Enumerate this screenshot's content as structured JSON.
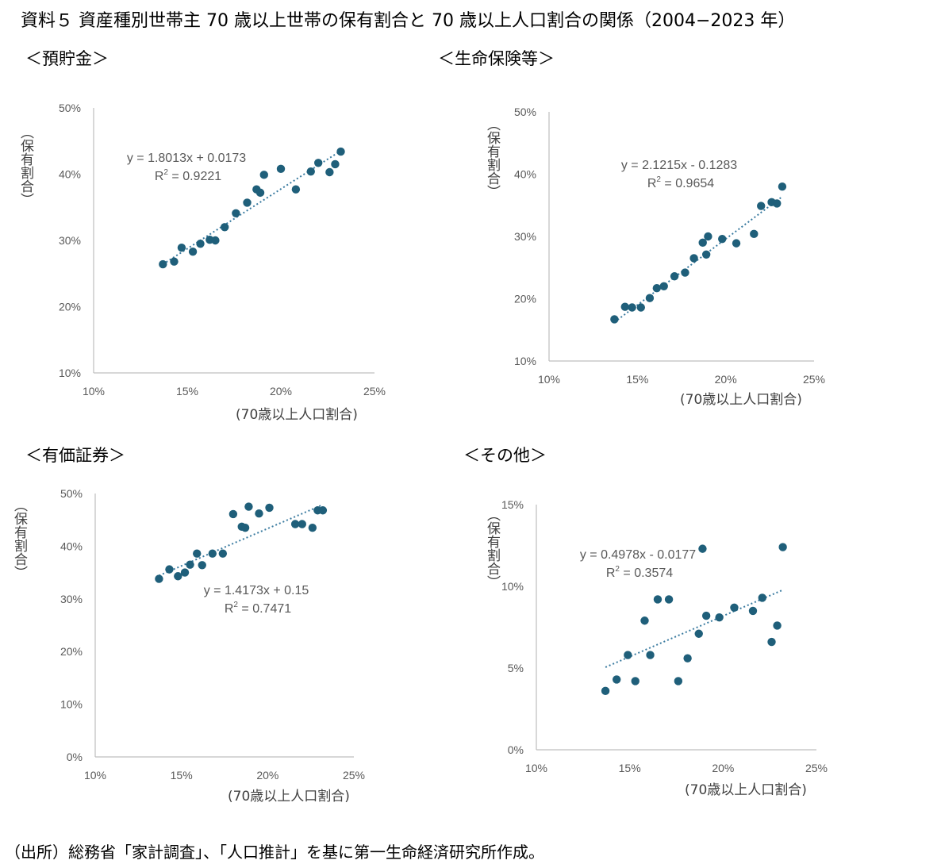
{
  "title": "資料５ 資産種別世帯主 70 歳以上世帯の保有割合と 70 歳以上人口割合の関係（2004−2023 年）",
  "source": "（出所）総務省「家計調査」、「人口推計」を基に第一生命経済研究所作成。",
  "colors": {
    "point": "#1f5f7a",
    "trend": "#3a7ba0",
    "axis": "#bfbfbf"
  },
  "chart_data": [
    {
      "type": "scatter",
      "panel_title": "＜預貯金＞",
      "ylabel": "（保有割合）",
      "xlabel": "(70歳以上人口割合)",
      "xlim": [
        0.1,
        0.25
      ],
      "ylim": [
        0.1,
        0.5
      ],
      "xticks": [
        "10%",
        "15%",
        "20%",
        "25%"
      ],
      "yticks": [
        "10%",
        "20%",
        "30%",
        "40%",
        "50%"
      ],
      "trendline": {
        "slope": 1.8013,
        "intercept": 0.0173,
        "equation": "y = 1.8013x + 0.0173",
        "r2_label": "R",
        "r2_value": " = 0.9221"
      },
      "x": [
        0.137,
        0.143,
        0.147,
        0.153,
        0.157,
        0.162,
        0.165,
        0.17,
        0.176,
        0.182,
        0.187,
        0.189,
        0.191,
        0.2,
        0.208,
        0.216,
        0.22,
        0.226,
        0.229,
        0.232
      ],
      "y": [
        0.264,
        0.268,
        0.289,
        0.283,
        0.295,
        0.301,
        0.3,
        0.32,
        0.341,
        0.357,
        0.377,
        0.372,
        0.399,
        0.408,
        0.377,
        0.404,
        0.417,
        0.403,
        0.415,
        0.434
      ]
    },
    {
      "type": "scatter",
      "panel_title": "＜生命保険等＞",
      "ylabel": "（保有割合）",
      "xlabel": "(70歳以上人口割合)",
      "xlim": [
        0.1,
        0.25
      ],
      "ylim": [
        0.1,
        0.5
      ],
      "xticks": [
        "10%",
        "15%",
        "20%",
        "25%"
      ],
      "yticks": [
        "10%",
        "20%",
        "30%",
        "40%",
        "50%"
      ],
      "trendline": {
        "slope": 2.1215,
        "intercept": -0.1283,
        "equation": "y = 2.1215x - 0.1283",
        "r2_label": "R",
        "r2_value": " = 0.9654"
      },
      "x": [
        0.137,
        0.143,
        0.147,
        0.152,
        0.157,
        0.161,
        0.165,
        0.171,
        0.177,
        0.182,
        0.187,
        0.189,
        0.19,
        0.198,
        0.206,
        0.216,
        0.22,
        0.226,
        0.229,
        0.232
      ],
      "y": [
        0.167,
        0.187,
        0.186,
        0.186,
        0.201,
        0.217,
        0.22,
        0.236,
        0.242,
        0.265,
        0.29,
        0.271,
        0.3,
        0.296,
        0.289,
        0.304,
        0.349,
        0.355,
        0.353,
        0.38
      ]
    },
    {
      "type": "scatter",
      "panel_title": "＜有価証券＞",
      "ylabel": "（保有割合）",
      "xlabel": "(70歳以上人口割合)",
      "xlim": [
        0.1,
        0.25
      ],
      "ylim": [
        0.0,
        0.5
      ],
      "xticks": [
        "10%",
        "15%",
        "20%",
        "25%"
      ],
      "yticks": [
        "0%",
        "10%",
        "20%",
        "30%",
        "40%",
        "50%"
      ],
      "trendline": {
        "slope": 1.4173,
        "intercept": 0.15,
        "equation": "y = 1.4173x + 0.15",
        "r2_label": "R",
        "r2_value": " = 0.7471"
      },
      "x": [
        0.137,
        0.143,
        0.148,
        0.152,
        0.155,
        0.159,
        0.162,
        0.168,
        0.174,
        0.18,
        0.185,
        0.187,
        0.189,
        0.195,
        0.201,
        0.216,
        0.22,
        0.226,
        0.229,
        0.232
      ],
      "y": [
        0.338,
        0.356,
        0.343,
        0.35,
        0.365,
        0.386,
        0.364,
        0.386,
        0.386,
        0.461,
        0.437,
        0.435,
        0.475,
        0.462,
        0.473,
        0.442,
        0.442,
        0.435,
        0.468,
        0.468
      ]
    },
    {
      "type": "scatter",
      "panel_title": "＜その他＞",
      "ylabel": "（保有割合）",
      "xlabel": "(70歳以上人口割合)",
      "xlim": [
        0.1,
        0.25
      ],
      "ylim": [
        0.0,
        0.15
      ],
      "xticks": [
        "10%",
        "15%",
        "20%",
        "25%"
      ],
      "yticks": [
        "0%",
        "5%",
        "10%",
        "15%"
      ],
      "trendline": {
        "slope": 0.4978,
        "intercept": -0.0177,
        "equation": "y = 0.4978x - 0.0177",
        "r2_label": "R",
        "r2_value": " = 0.3574"
      },
      "x": [
        0.137,
        0.143,
        0.149,
        0.153,
        0.158,
        0.161,
        0.165,
        0.171,
        0.176,
        0.181,
        0.187,
        0.189,
        0.191,
        0.198,
        0.206,
        0.216,
        0.221,
        0.226,
        0.229,
        0.232
      ],
      "y": [
        0.036,
        0.043,
        0.058,
        0.042,
        0.079,
        0.058,
        0.092,
        0.092,
        0.042,
        0.056,
        0.071,
        0.123,
        0.082,
        0.081,
        0.087,
        0.085,
        0.093,
        0.066,
        0.076,
        0.124
      ]
    }
  ]
}
